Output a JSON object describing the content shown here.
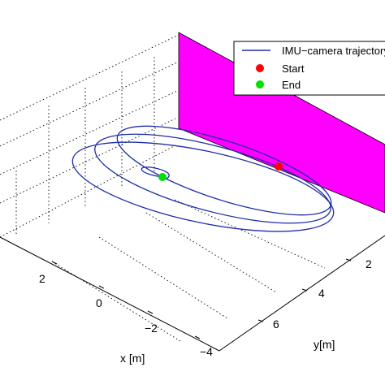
{
  "chart_data": {
    "type": "3d-line",
    "xlabel": "x [m]",
    "ylabel": "y[m]",
    "x_ticks": [
      "2",
      "0",
      "−2",
      "−4"
    ],
    "y_ticks": [
      "2",
      "4",
      "6"
    ],
    "grid": true,
    "legend_position": "top-right",
    "legend": [
      {
        "label": "IMU−camera trajectory",
        "marker": "line",
        "color": "#1f2ea8"
      },
      {
        "label": "Start",
        "marker": "dot",
        "color": "#ff0000"
      },
      {
        "label": "End",
        "marker": "dot",
        "color": "#00e000"
      }
    ],
    "series": [
      {
        "name": "IMU−camera trajectory",
        "description": "multi-loop elliptical trajectory spiralling inward toward the end point",
        "color": "#1f2ea8"
      }
    ],
    "points": [
      {
        "name": "Start",
        "color": "#ff0000"
      },
      {
        "name": "End",
        "color": "#00e000"
      }
    ],
    "plane": {
      "color": "#ff00ff"
    }
  }
}
